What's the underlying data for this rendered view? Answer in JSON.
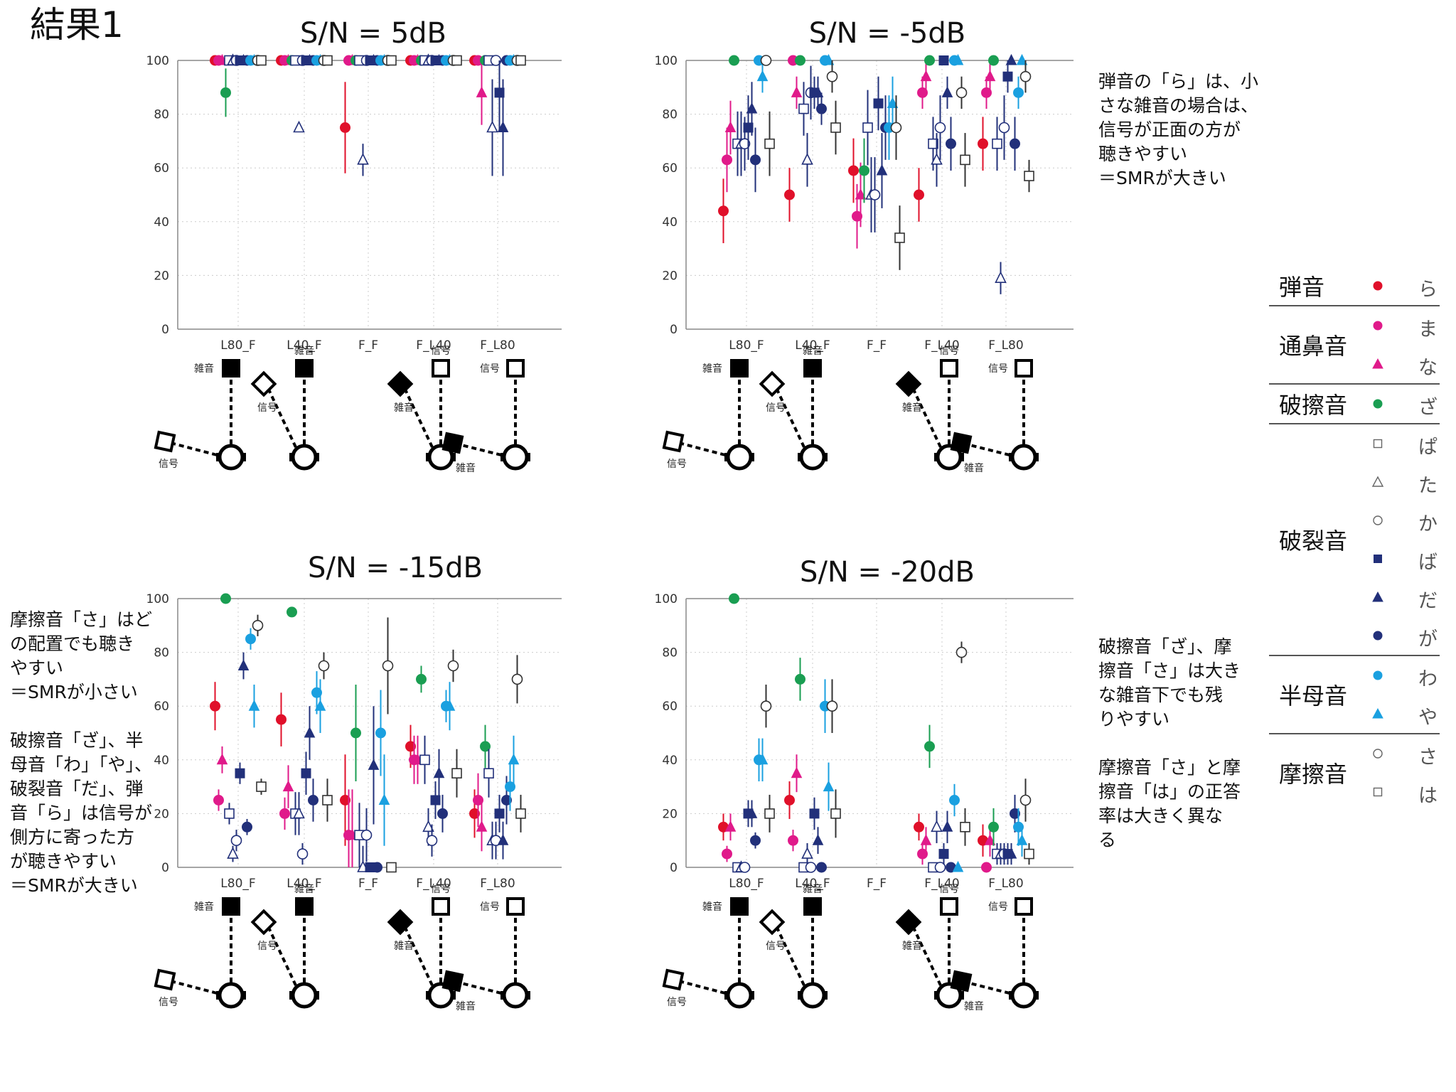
{
  "page_title": "結果1",
  "colors": {
    "ra": "#e0102a",
    "ma": "#e01a8a",
    "na": "#e01a8a",
    "za": "#1a9e52",
    "pa": "#22307a",
    "ta": "#22307a",
    "ka": "#22307a",
    "ba": "#22307a",
    "da": "#22307a",
    "ga": "#22307a",
    "wa": "#1aa0e0",
    "ya": "#1aa0e0",
    "sa": "#333333",
    "ha": "#333333"
  },
  "symbols": {
    "ra": "filled-circle",
    "ma": "filled-circle",
    "na": "filled-triangle",
    "za": "filled-circle",
    "pa": "open-square",
    "ta": "open-triangle",
    "ka": "open-circle",
    "ba": "filled-square",
    "da": "filled-triangle",
    "ga": "filled-circle",
    "wa": "filled-circle",
    "ya": "filled-triangle",
    "sa": "open-circle",
    "ha": "open-square"
  },
  "legend": {
    "groups": [
      {
        "name": "弾音",
        "items": [
          {
            "key": "ra",
            "kana": "ら"
          }
        ]
      },
      {
        "name": "通鼻音",
        "items": [
          {
            "key": "ma",
            "kana": "ま"
          },
          {
            "key": "na",
            "kana": "な"
          }
        ]
      },
      {
        "name": "破擦音",
        "items": [
          {
            "key": "za",
            "kana": "ざ"
          }
        ]
      },
      {
        "name": "破裂音",
        "items": [
          {
            "key": "pa",
            "kana": "ぱ"
          },
          {
            "key": "ta",
            "kana": "た"
          },
          {
            "key": "ka",
            "kana": "か"
          },
          {
            "key": "ba",
            "kana": "ば"
          },
          {
            "key": "da",
            "kana": "だ"
          },
          {
            "key": "ga",
            "kana": "が"
          }
        ]
      },
      {
        "name": "半母音",
        "items": [
          {
            "key": "wa",
            "kana": "わ"
          },
          {
            "key": "ya",
            "kana": "や"
          }
        ]
      },
      {
        "name": "摩擦音",
        "items": [
          {
            "key": "sa",
            "kana": "さ"
          },
          {
            "key": "ha",
            "kana": "は"
          }
        ]
      }
    ]
  },
  "diagram_labels": {
    "signal": "信号",
    "noise": "雑音"
  },
  "notes": {
    "top_right": [
      "弾音の「ら」は、小",
      "さな雑音の場合は、",
      "信号が正面の方が",
      "聴きやすい",
      "＝SMRが大きい"
    ],
    "bottom_left_a": [
      "摩擦音「さ」はど",
      "の配置でも聴き",
      "やすい",
      "＝SMRが小さい"
    ],
    "bottom_left_b": [
      "破擦音「ざ」、半",
      "母音「わ」「や」、",
      "破裂音「だ」、弾",
      "音「ら」は信号が",
      "側方に寄った方",
      "が聴きやすい",
      "＝SMRが大きい"
    ],
    "bottom_right_a": [
      "破擦音「ざ」、摩",
      "擦音「さ」は大き",
      "な雑音下でも残",
      "りやすい"
    ],
    "bottom_right_b": [
      "摩擦音「さ」と摩",
      "擦音「は」の正答",
      "率は大きく異な",
      "る"
    ]
  },
  "chart_data": [
    {
      "type": "scatter",
      "title": "S/N = 5dB",
      "categories": [
        "L80_F",
        "L40_F",
        "F_F",
        "F_L40",
        "F_L80"
      ],
      "ylim": [
        0,
        100
      ],
      "yticks": [
        0,
        20,
        40,
        60,
        80,
        100
      ],
      "grid": true,
      "series": [
        {
          "key": "ra",
          "values": [
            100,
            100,
            75,
            100,
            100
          ],
          "errors": [
            0,
            0,
            17,
            0,
            0
          ]
        },
        {
          "key": "ma",
          "values": [
            100,
            100,
            100,
            100,
            100
          ],
          "errors": [
            0,
            0,
            0,
            0,
            0
          ]
        },
        {
          "key": "na",
          "values": [
            100,
            100,
            100,
            100,
            88
          ],
          "errors": [
            0,
            0,
            0,
            0,
            12
          ]
        },
        {
          "key": "za",
          "values": [
            88,
            100,
            100,
            100,
            100
          ],
          "errors": [
            9,
            0,
            0,
            0,
            0
          ]
        },
        {
          "key": "pa",
          "values": [
            100,
            100,
            100,
            100,
            100
          ],
          "errors": [
            0,
            0,
            0,
            0,
            0
          ]
        },
        {
          "key": "ta",
          "values": [
            100,
            75,
            63,
            100,
            75
          ],
          "errors": [
            0,
            0,
            6,
            0,
            18
          ]
        },
        {
          "key": "ka",
          "values": [
            100,
            100,
            100,
            100,
            100
          ],
          "errors": [
            0,
            0,
            0,
            0,
            0
          ]
        },
        {
          "key": "ba",
          "values": [
            100,
            100,
            100,
            100,
            88
          ],
          "errors": [
            0,
            0,
            0,
            0,
            14
          ]
        },
        {
          "key": "da",
          "values": [
            100,
            100,
            100,
            100,
            75
          ],
          "errors": [
            0,
            0,
            0,
            0,
            18
          ]
        },
        {
          "key": "ga",
          "values": [
            100,
            100,
            100,
            100,
            100
          ],
          "errors": [
            0,
            0,
            0,
            0,
            0
          ]
        },
        {
          "key": "wa",
          "values": [
            100,
            100,
            100,
            100,
            100
          ],
          "errors": [
            0,
            0,
            0,
            0,
            0
          ]
        },
        {
          "key": "ya",
          "values": [
            100,
            100,
            100,
            100,
            100
          ],
          "errors": [
            0,
            0,
            0,
            0,
            0
          ]
        },
        {
          "key": "sa",
          "values": [
            100,
            100,
            100,
            100,
            100
          ],
          "errors": [
            0,
            0,
            0,
            0,
            0
          ]
        },
        {
          "key": "ha",
          "values": [
            100,
            100,
            100,
            100,
            100
          ],
          "errors": [
            0,
            0,
            0,
            0,
            0
          ]
        }
      ]
    },
    {
      "type": "scatter",
      "title": "S/N = -5dB",
      "categories": [
        "L80_F",
        "L40_F",
        "F_F",
        "F_L40",
        "F_L80"
      ],
      "ylim": [
        0,
        100
      ],
      "yticks": [
        0,
        20,
        40,
        60,
        80,
        100
      ],
      "grid": true,
      "series": [
        {
          "key": "ra",
          "values": [
            44,
            50,
            59,
            50,
            69
          ],
          "errors": [
            12,
            10,
            12,
            10,
            10
          ]
        },
        {
          "key": "ma",
          "values": [
            63,
            100,
            42,
            88,
            88
          ],
          "errors": [
            12,
            0,
            12,
            6,
            6
          ]
        },
        {
          "key": "na",
          "values": [
            75,
            88,
            50,
            94,
            94
          ],
          "errors": [
            10,
            6,
            12,
            6,
            6
          ]
        },
        {
          "key": "za",
          "values": [
            100,
            100,
            59,
            100,
            100
          ],
          "errors": [
            0,
            0,
            12,
            0,
            0
          ]
        },
        {
          "key": "pa",
          "values": [
            69,
            82,
            75,
            69,
            69
          ],
          "errors": [
            12,
            10,
            14,
            10,
            10
          ]
        },
        {
          "key": "ta",
          "values": [
            69,
            63,
            50,
            63,
            19
          ],
          "errors": [
            12,
            10,
            14,
            10,
            6
          ]
        },
        {
          "key": "ka",
          "values": [
            69,
            88,
            50,
            75,
            75
          ],
          "errors": [
            10,
            10,
            14,
            12,
            12
          ]
        },
        {
          "key": "ba",
          "values": [
            75,
            88,
            84,
            100,
            94
          ],
          "errors": [
            12,
            6,
            10,
            0,
            6
          ]
        },
        {
          "key": "da",
          "values": [
            82,
            88,
            59,
            88,
            100
          ],
          "errors": [
            10,
            6,
            14,
            6,
            0
          ]
        },
        {
          "key": "ga",
          "values": [
            63,
            82,
            75,
            69,
            69
          ],
          "errors": [
            12,
            6,
            12,
            10,
            10
          ]
        },
        {
          "key": "wa",
          "values": [
            100,
            100,
            75,
            100,
            88
          ],
          "errors": [
            0,
            0,
            12,
            0,
            6
          ]
        },
        {
          "key": "ya",
          "values": [
            94,
            100,
            84,
            100,
            100
          ],
          "errors": [
            6,
            0,
            10,
            0,
            0
          ]
        },
        {
          "key": "sa",
          "values": [
            100,
            94,
            75,
            88,
            94
          ],
          "errors": [
            0,
            6,
            12,
            6,
            6
          ]
        },
        {
          "key": "ha",
          "values": [
            69,
            75,
            34,
            63,
            57
          ],
          "errors": [
            12,
            10,
            12,
            10,
            6
          ]
        }
      ]
    },
    {
      "type": "scatter",
      "title": "S/N = -15dB",
      "categories": [
        "L80_F",
        "L40_F",
        "F_F",
        "F_L40",
        "F_L80"
      ],
      "ylim": [
        0,
        100
      ],
      "yticks": [
        0,
        20,
        40,
        60,
        80,
        100
      ],
      "grid": true,
      "series": [
        {
          "key": "ra",
          "values": [
            60,
            55,
            25,
            45,
            20
          ],
          "errors": [
            9,
            10,
            17,
            8,
            9
          ]
        },
        {
          "key": "ma",
          "values": [
            25,
            20,
            12,
            40,
            25
          ],
          "errors": [
            4,
            6,
            17,
            9,
            10
          ]
        },
        {
          "key": "na",
          "values": [
            40,
            30,
            12,
            40,
            15
          ],
          "errors": [
            5,
            8,
            17,
            9,
            9
          ]
        },
        {
          "key": "za",
          "values": [
            100,
            95,
            50,
            70,
            45
          ],
          "errors": [
            0,
            0,
            18,
            5,
            8
          ]
        },
        {
          "key": "pa",
          "values": [
            20,
            20,
            12,
            40,
            35
          ],
          "errors": [
            4,
            8,
            12,
            9,
            9
          ]
        },
        {
          "key": "ta",
          "values": [
            5,
            20,
            0,
            15,
            10
          ],
          "errors": [
            3,
            8,
            8,
            7,
            7
          ]
        },
        {
          "key": "ka",
          "values": [
            10,
            5,
            12,
            10,
            10
          ],
          "errors": [
            4,
            4,
            10,
            6,
            7
          ]
        },
        {
          "key": "ba",
          "values": [
            35,
            35,
            0,
            25,
            20
          ],
          "errors": [
            4,
            8,
            0,
            7,
            7
          ]
        },
        {
          "key": "da",
          "values": [
            75,
            50,
            38,
            35,
            10
          ],
          "errors": [
            5,
            10,
            22,
            9,
            7
          ]
        },
        {
          "key": "ga",
          "values": [
            15,
            25,
            0,
            20,
            25
          ],
          "errors": [
            3,
            8,
            0,
            7,
            9
          ]
        },
        {
          "key": "wa",
          "values": [
            85,
            65,
            50,
            60,
            30
          ],
          "errors": [
            4,
            8,
            16,
            6,
            9
          ]
        },
        {
          "key": "ya",
          "values": [
            60,
            60,
            25,
            60,
            40
          ],
          "errors": [
            8,
            10,
            17,
            9,
            9
          ]
        },
        {
          "key": "sa",
          "values": [
            90,
            75,
            75,
            75,
            70
          ],
          "errors": [
            4,
            5,
            18,
            6,
            9
          ]
        },
        {
          "key": "ha",
          "values": [
            30,
            25,
            0,
            35,
            20
          ],
          "errors": [
            3,
            8,
            0,
            9,
            7
          ]
        }
      ]
    },
    {
      "type": "scatter",
      "title": "S/N = -20dB",
      "categories": [
        "L80_F",
        "L40_F",
        "F_F",
        "F_L40",
        "F_L80"
      ],
      "ylim": [
        0,
        100
      ],
      "yticks": [
        0,
        20,
        40,
        60,
        80,
        100
      ],
      "grid": true,
      "series": [
        {
          "key": "ra",
          "values": [
            15,
            25,
            null,
            15,
            10
          ],
          "errors": [
            5,
            7,
            0,
            5,
            6
          ]
        },
        {
          "key": "ma",
          "values": [
            5,
            10,
            null,
            5,
            0
          ],
          "errors": [
            3,
            4,
            0,
            4,
            0
          ]
        },
        {
          "key": "na",
          "values": [
            15,
            35,
            null,
            10,
            10
          ],
          "errors": [
            5,
            7,
            0,
            5,
            6
          ]
        },
        {
          "key": "za",
          "values": [
            100,
            70,
            null,
            45,
            15
          ],
          "errors": [
            0,
            8,
            0,
            8,
            7
          ]
        },
        {
          "key": "pa",
          "values": [
            0,
            0,
            null,
            0,
            5
          ],
          "errors": [
            0,
            0,
            0,
            0,
            4
          ]
        },
        {
          "key": "ta",
          "values": [
            0,
            5,
            null,
            15,
            5
          ],
          "errors": [
            0,
            4,
            0,
            6,
            4
          ]
        },
        {
          "key": "ka",
          "values": [
            0,
            0,
            null,
            0,
            5
          ],
          "errors": [
            0,
            0,
            0,
            0,
            4
          ]
        },
        {
          "key": "ba",
          "values": [
            20,
            20,
            null,
            5,
            5
          ],
          "errors": [
            5,
            6,
            0,
            4,
            4
          ]
        },
        {
          "key": "da",
          "values": [
            20,
            10,
            null,
            15,
            5
          ],
          "errors": [
            5,
            5,
            0,
            6,
            4
          ]
        },
        {
          "key": "ga",
          "values": [
            10,
            0,
            null,
            0,
            20
          ],
          "errors": [
            3,
            0,
            0,
            0,
            7
          ]
        },
        {
          "key": "wa",
          "values": [
            40,
            60,
            null,
            25,
            15
          ],
          "errors": [
            8,
            10,
            0,
            6,
            7
          ]
        },
        {
          "key": "ya",
          "values": [
            40,
            30,
            null,
            0,
            10
          ],
          "errors": [
            8,
            9,
            0,
            0,
            6
          ]
        },
        {
          "key": "sa",
          "values": [
            60,
            60,
            null,
            80,
            25
          ],
          "errors": [
            8,
            10,
            0,
            4,
            8
          ]
        },
        {
          "key": "ha",
          "values": [
            20,
            20,
            null,
            15,
            5
          ],
          "errors": [
            7,
            9,
            0,
            7,
            4
          ]
        }
      ]
    }
  ]
}
